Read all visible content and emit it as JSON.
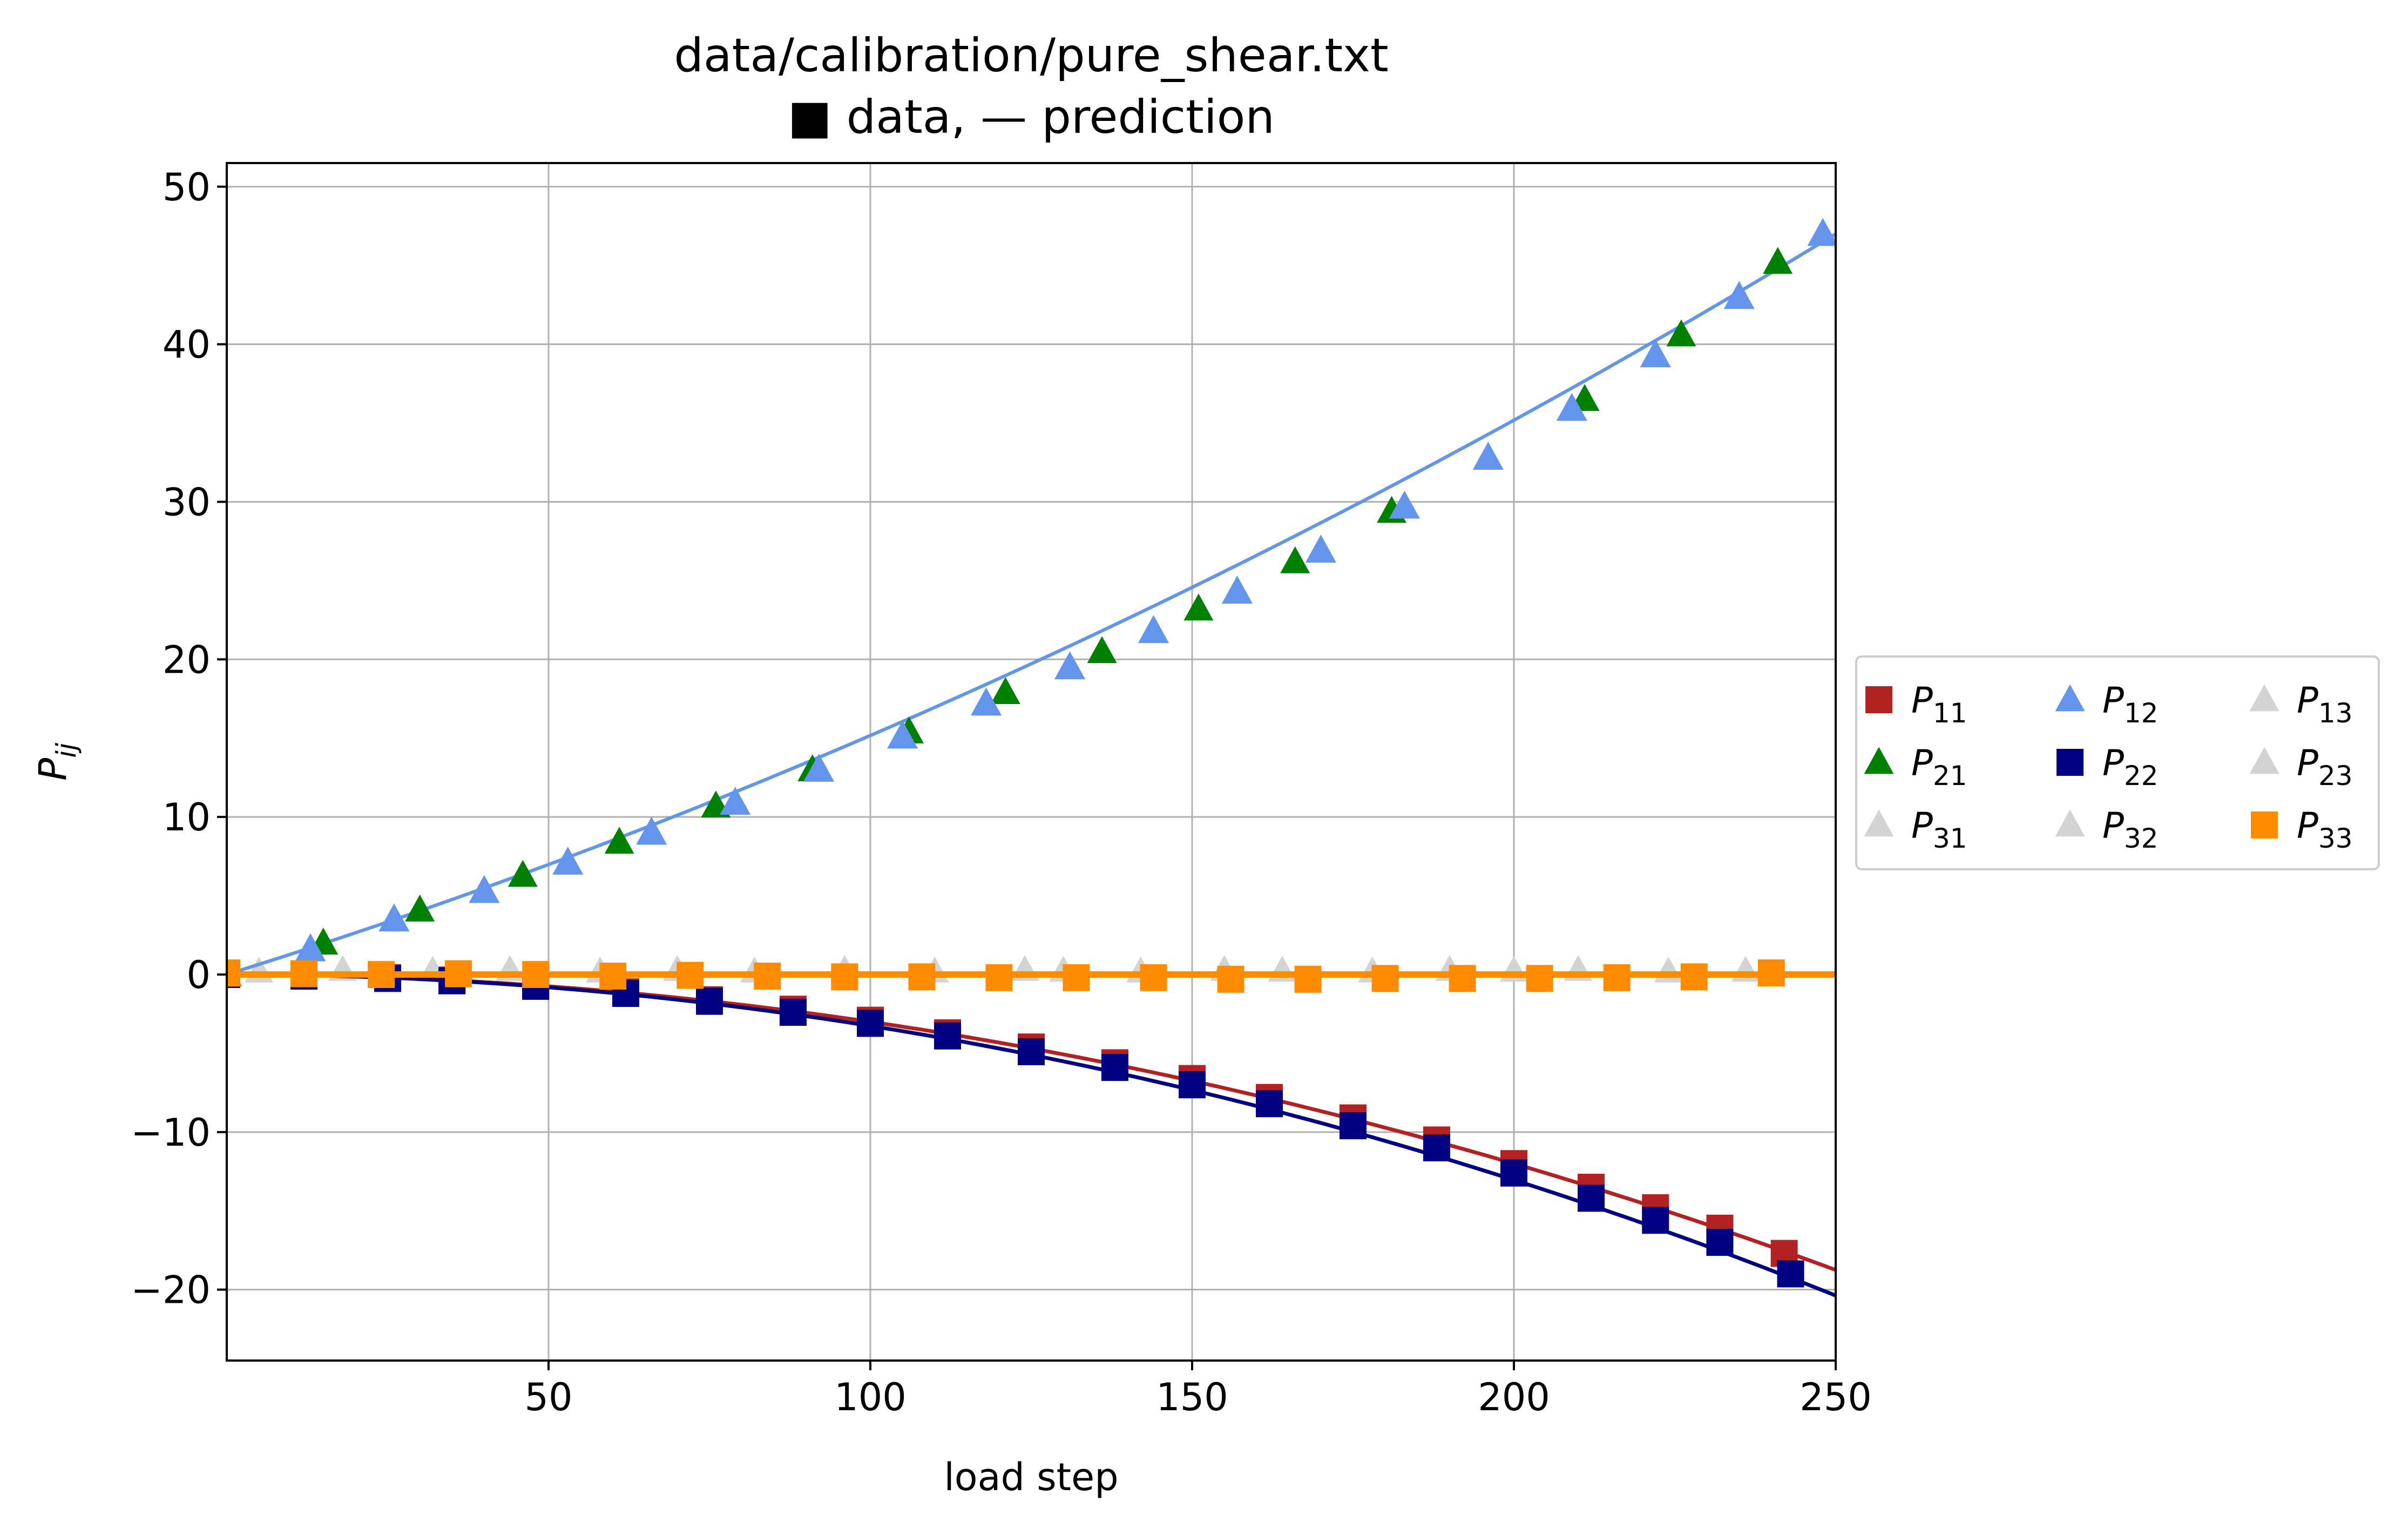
{
  "chart_data": {
    "type": "scatter",
    "title": "data/calibration/pure_shear.txt",
    "subtitle": "■ data, — prediction",
    "xlabel": "load step",
    "ylabel": "P",
    "ylabel_sub": "ij",
    "xlim": [
      0,
      250
    ],
    "ylim": [
      -24.5,
      51.5
    ],
    "xticks": [
      50,
      100,
      150,
      200,
      250
    ],
    "yticks": [
      -20,
      -10,
      0,
      10,
      20,
      30,
      40,
      50
    ],
    "grid": true,
    "legend_position": "right, outside plot",
    "legend_columns": 3,
    "series": [
      {
        "name": "P",
        "sub": "11",
        "color": "#b22222",
        "marker": "square",
        "curve": [
          0.0,
          -0.0003
        ]
      },
      {
        "name": "P",
        "sub": "12",
        "color": "#6495ed",
        "marker": "triangle",
        "curve": [
          0.1275,
          0.000242
        ]
      },
      {
        "name": "P",
        "sub": "13",
        "color": "#d3d3d3",
        "marker": "triangle",
        "curve": [
          0.0,
          0.0
        ]
      },
      {
        "name": "P",
        "sub": "21",
        "color": "#008000",
        "marker": "triangle",
        "curve": [
          0.1275,
          0.000242
        ]
      },
      {
        "name": "P",
        "sub": "22",
        "color": "#000080",
        "marker": "square",
        "curve": [
          0.0,
          -0.000326
        ]
      },
      {
        "name": "P",
        "sub": "23",
        "color": "#d3d3d3",
        "marker": "triangle",
        "curve": [
          0.0,
          0.0
        ]
      },
      {
        "name": "P",
        "sub": "31",
        "color": "#d3d3d3",
        "marker": "triangle",
        "curve": [
          0.0,
          0.0
        ]
      },
      {
        "name": "P",
        "sub": "32",
        "color": "#d3d3d3",
        "marker": "triangle",
        "curve": [
          0.0,
          0.0
        ]
      },
      {
        "name": "P",
        "sub": "33",
        "color": "#ff8c00",
        "marker": "square",
        "curve": [
          0.0,
          0.0
        ]
      }
    ],
    "data_points": {
      "11": [
        [
          0,
          0
        ],
        [
          12,
          -0.1
        ],
        [
          25,
          -0.2
        ],
        [
          35,
          -0.35
        ],
        [
          48,
          -0.7
        ],
        [
          62,
          -1.1
        ],
        [
          75,
          -1.6
        ],
        [
          88,
          -2.2
        ],
        [
          100,
          -2.9
        ],
        [
          112,
          -3.7
        ],
        [
          125,
          -4.6
        ],
        [
          138,
          -5.6
        ],
        [
          150,
          -6.6
        ],
        [
          162,
          -7.8
        ],
        [
          175,
          -9.1
        ],
        [
          188,
          -10.5
        ],
        [
          200,
          -12.0
        ],
        [
          212,
          -13.5
        ],
        [
          222,
          -14.8
        ],
        [
          232,
          -16.1
        ],
        [
          242,
          -17.7
        ]
      ],
      "22": [
        [
          0,
          0
        ],
        [
          12,
          -0.1
        ],
        [
          25,
          -0.25
        ],
        [
          35,
          -0.4
        ],
        [
          48,
          -0.75
        ],
        [
          62,
          -1.2
        ],
        [
          75,
          -1.7
        ],
        [
          88,
          -2.4
        ],
        [
          100,
          -3.1
        ],
        [
          112,
          -3.9
        ],
        [
          125,
          -4.9
        ],
        [
          138,
          -5.9
        ],
        [
          150,
          -7.0
        ],
        [
          162,
          -8.2
        ],
        [
          175,
          -9.6
        ],
        [
          188,
          -11.0
        ],
        [
          200,
          -12.6
        ],
        [
          212,
          -14.2
        ],
        [
          222,
          -15.6
        ],
        [
          232,
          -17.0
        ],
        [
          243,
          -19.0
        ]
      ],
      "21": [
        [
          0,
          0
        ],
        [
          15,
          2
        ],
        [
          30,
          4.1
        ],
        [
          46,
          6.3
        ],
        [
          61,
          8.4
        ],
        [
          76,
          10.7
        ],
        [
          91,
          13.0
        ],
        [
          106,
          15.4
        ],
        [
          121,
          17.9
        ],
        [
          136,
          20.5
        ],
        [
          151,
          23.2
        ],
        [
          166,
          26.2
        ],
        [
          181,
          29.4
        ],
        [
          196,
          32.8
        ],
        [
          211,
          36.5
        ],
        [
          226,
          40.6
        ],
        [
          241,
          45.2
        ]
      ],
      "12": [
        [
          0,
          0
        ],
        [
          13,
          1.6
        ],
        [
          26,
          3.5
        ],
        [
          40,
          5.3
        ],
        [
          53,
          7.1
        ],
        [
          66,
          9.0
        ],
        [
          79,
          10.9
        ],
        [
          92,
          13.0
        ],
        [
          105,
          15.1
        ],
        [
          118,
          17.2
        ],
        [
          131,
          19.5
        ],
        [
          144,
          21.8
        ],
        [
          157,
          24.3
        ],
        [
          170,
          26.9
        ],
        [
          183,
          29.7
        ],
        [
          196,
          32.8
        ],
        [
          209,
          35.9
        ],
        [
          222,
          39.3
        ],
        [
          235,
          43.0
        ],
        [
          248,
          47.0
        ]
      ],
      "33": [
        [
          0,
          0.1
        ],
        [
          12,
          0.05
        ],
        [
          24,
          0
        ],
        [
          36,
          0.05
        ],
        [
          48,
          0
        ],
        [
          60,
          -0.1
        ],
        [
          72,
          -0.05
        ],
        [
          84,
          -0.1
        ],
        [
          96,
          -0.15
        ],
        [
          108,
          -0.15
        ],
        [
          120,
          -0.2
        ],
        [
          132,
          -0.2
        ],
        [
          144,
          -0.2
        ],
        [
          156,
          -0.3
        ],
        [
          168,
          -0.3
        ],
        [
          180,
          -0.25
        ],
        [
          192,
          -0.25
        ],
        [
          204,
          -0.25
        ],
        [
          216,
          -0.2
        ],
        [
          228,
          -0.15
        ],
        [
          240,
          0.1
        ]
      ],
      "gray": [
        [
          5,
          0.2
        ],
        [
          18,
          0.3
        ],
        [
          32,
          0.25
        ],
        [
          44,
          0.3
        ],
        [
          58,
          0.2
        ],
        [
          70,
          0.3
        ],
        [
          82,
          0.2
        ],
        [
          96,
          0.3
        ],
        [
          110,
          0.2
        ],
        [
          124,
          0.3
        ],
        [
          130,
          0.25
        ],
        [
          142,
          0.2
        ],
        [
          155,
          0.3
        ],
        [
          164,
          0.25
        ],
        [
          178,
          0.2
        ],
        [
          190,
          0.3
        ],
        [
          200,
          0.25
        ],
        [
          210,
          0.3
        ],
        [
          224,
          0.2
        ],
        [
          236,
          0.25
        ]
      ]
    }
  }
}
